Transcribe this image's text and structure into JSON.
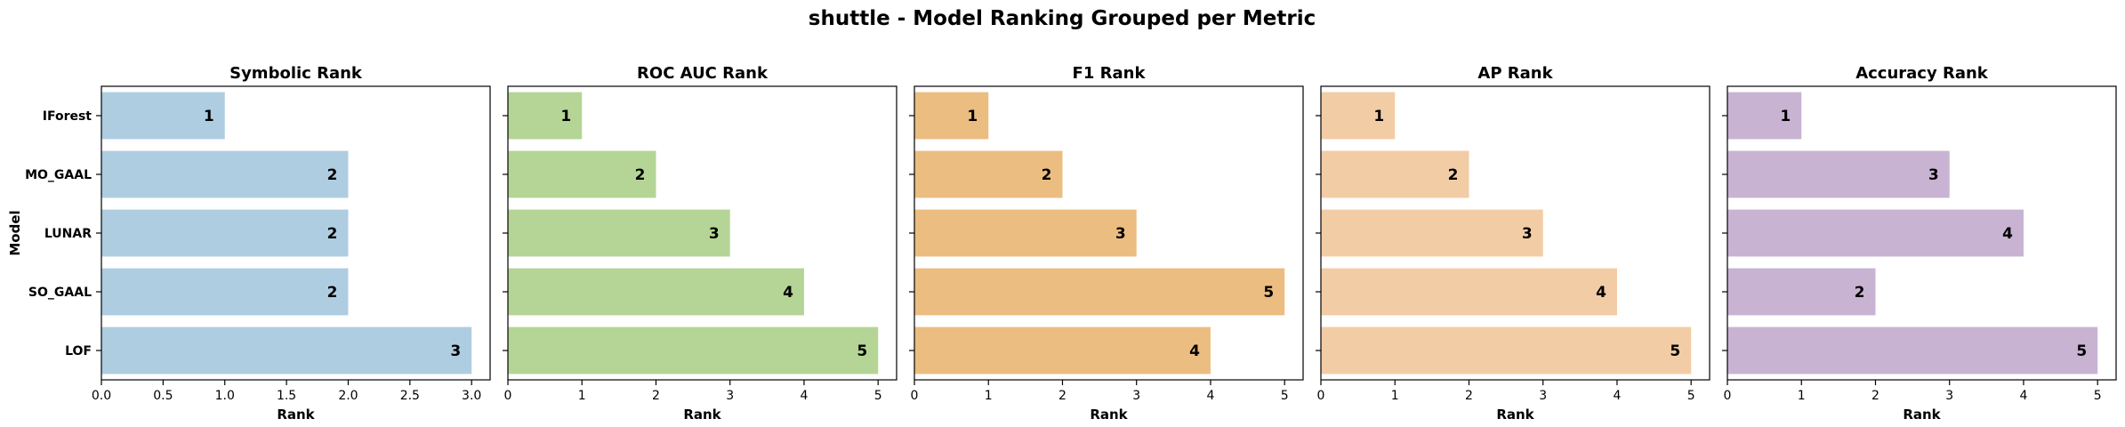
{
  "chart_data": {
    "type": "bar",
    "orientation": "horizontal",
    "title": "shuttle - Model Ranking Grouped per Metric",
    "ylabel": "Model",
    "categories": [
      "IForest",
      "MO_GAAL",
      "LUNAR",
      "SO_GAAL",
      "LOF"
    ],
    "panels": [
      {
        "title": "Symbolic Rank",
        "xlabel": "Rank",
        "xlim": [
          0,
          3.15
        ],
        "xticks": [
          0.0,
          0.5,
          1.0,
          1.5,
          2.0,
          2.5,
          3.0
        ],
        "xtick_labels": [
          "0.0",
          "0.5",
          "1.0",
          "1.5",
          "2.0",
          "2.5",
          "3.0"
        ],
        "values": [
          1,
          2,
          2,
          2,
          3
        ],
        "color": "#aecde1"
      },
      {
        "title": "ROC AUC Rank",
        "xlabel": "Rank",
        "xlim": [
          0,
          5.25
        ],
        "xticks": [
          0,
          1,
          2,
          3,
          4,
          5
        ],
        "xtick_labels": [
          "0",
          "1",
          "2",
          "3",
          "4",
          "5"
        ],
        "values": [
          1,
          2,
          3,
          4,
          5
        ],
        "color": "#b4d595"
      },
      {
        "title": "F1 Rank",
        "xlabel": "Rank",
        "xlim": [
          0,
          5.25
        ],
        "xticks": [
          0,
          1,
          2,
          3,
          4,
          5
        ],
        "xtick_labels": [
          "0",
          "1",
          "2",
          "3",
          "4",
          "5"
        ],
        "values": [
          1,
          2,
          3,
          5,
          4
        ],
        "color": "#ecbd80"
      },
      {
        "title": "AP Rank",
        "xlabel": "Rank",
        "xlim": [
          0,
          5.25
        ],
        "xticks": [
          0,
          1,
          2,
          3,
          4,
          5
        ],
        "xtick_labels": [
          "0",
          "1",
          "2",
          "3",
          "4",
          "5"
        ],
        "values": [
          1,
          2,
          3,
          4,
          5
        ],
        "color": "#f2cca5"
      },
      {
        "title": "Accuracy Rank",
        "xlabel": "Rank",
        "xlim": [
          0,
          5.25
        ],
        "xticks": [
          0,
          1,
          2,
          3,
          4,
          5
        ],
        "xtick_labels": [
          "0",
          "1",
          "2",
          "3",
          "4",
          "5"
        ],
        "values": [
          1,
          3,
          4,
          2,
          5
        ],
        "color": "#c8b3d3"
      }
    ],
    "grid": false,
    "legend": "none"
  }
}
